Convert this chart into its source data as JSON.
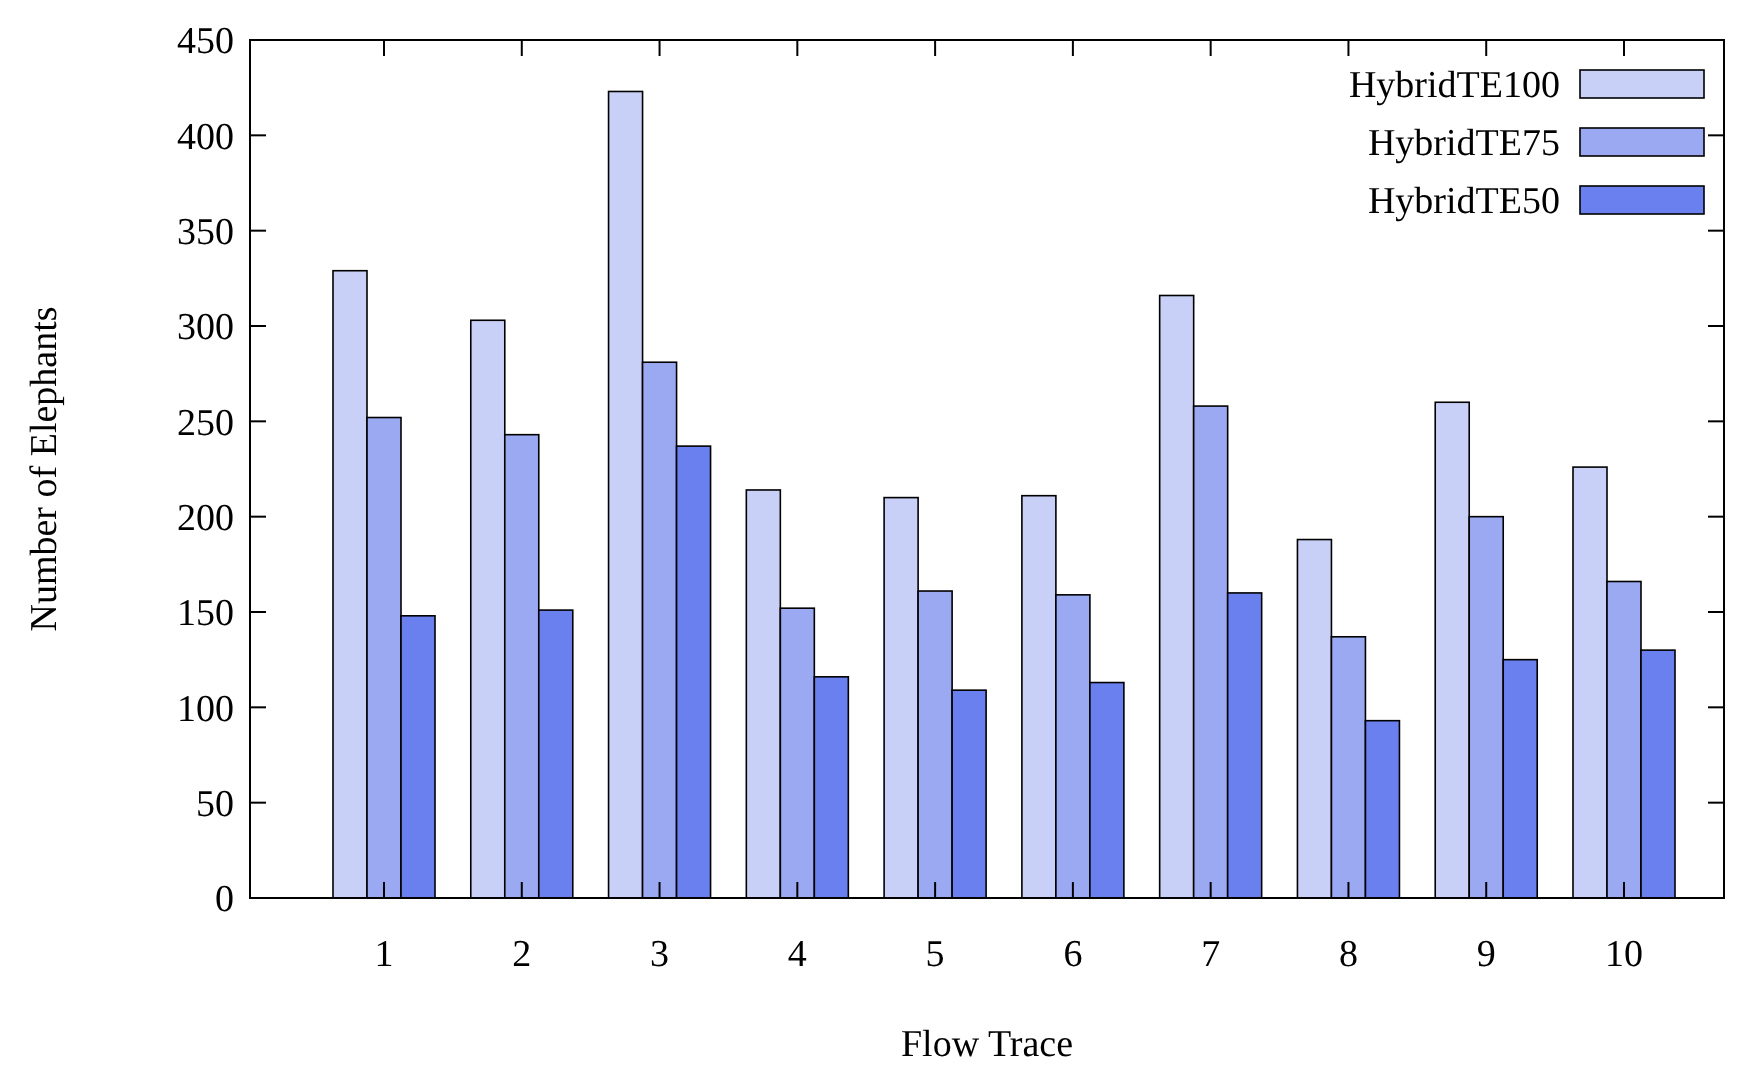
{
  "chart_data": {
    "type": "bar",
    "xlabel": "Flow Trace",
    "ylabel": "Number of Elephants",
    "categories": [
      "1",
      "2",
      "3",
      "4",
      "5",
      "6",
      "7",
      "8",
      "9",
      "10"
    ],
    "series": [
      {
        "name": "HybridTE100",
        "color": "#c9d0f7",
        "values": [
          329,
          303,
          423,
          214,
          210,
          211,
          316,
          188,
          260,
          226
        ]
      },
      {
        "name": "HybridTE75",
        "color": "#9aa9f2",
        "values": [
          252,
          243,
          281,
          152,
          161,
          159,
          258,
          137,
          200,
          166
        ]
      },
      {
        "name": "HybridTE50",
        "color": "#6a80ee",
        "values": [
          148,
          151,
          237,
          116,
          109,
          113,
          160,
          93,
          125,
          130
        ]
      }
    ],
    "ylim": [
      0,
      450
    ],
    "yticks": [
      0,
      50,
      100,
      150,
      200,
      250,
      300,
      350,
      400,
      450
    ],
    "legend": "top right"
  }
}
